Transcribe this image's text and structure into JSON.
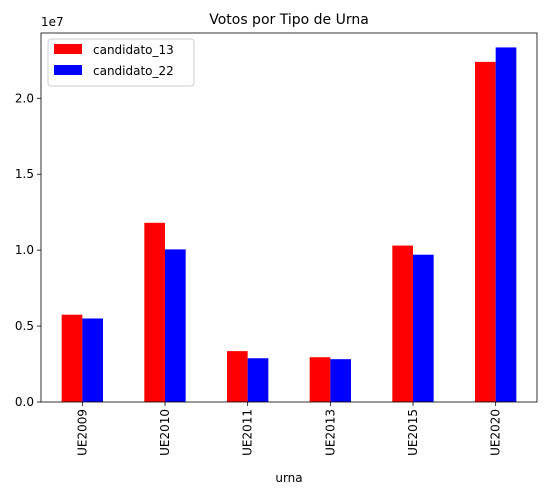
{
  "chart_data": {
    "type": "bar",
    "title": "Votos por Tipo de Urna",
    "xlabel": "urna",
    "ylabel": "",
    "y_scale_label": "1e7",
    "categories": [
      "UE2009",
      "UE2010",
      "UE2011",
      "UE2013",
      "UE2015",
      "UE2020"
    ],
    "series": [
      {
        "name": "candidato_13",
        "color": "#ff0000",
        "values": [
          5750000,
          11800000,
          3350000,
          2950000,
          10300000,
          22400000
        ]
      },
      {
        "name": "candidato_22",
        "color": "#0000ff",
        "values": [
          5500000,
          10050000,
          2880000,
          2820000,
          9700000,
          23350000
        ]
      }
    ],
    "ylim": [
      0,
      24300000
    ],
    "yticks": [
      0,
      5000000,
      10000000,
      15000000,
      20000000
    ],
    "ytick_labels": [
      "0.0",
      "0.5",
      "1.0",
      "1.5",
      "2.0"
    ],
    "grid": false,
    "legend_position": "top-left"
  }
}
